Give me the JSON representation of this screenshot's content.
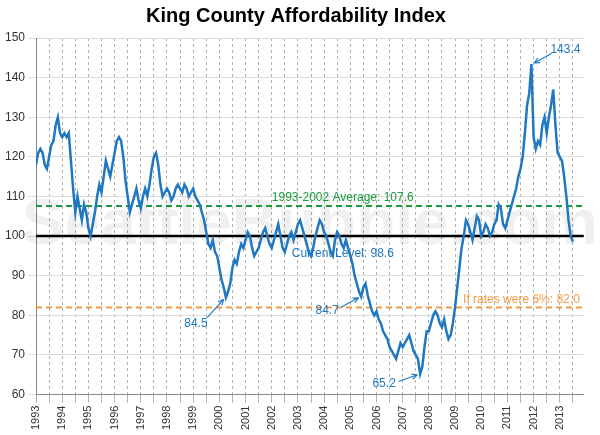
{
  "chart_data": {
    "type": "line",
    "title": "King County Affordability Index",
    "watermark": "SeattleBubble.com",
    "categories": [
      "1993",
      null,
      null,
      null,
      null,
      null,
      null,
      null,
      null,
      null,
      null,
      null,
      "1994",
      null,
      null,
      null,
      null,
      null,
      null,
      null,
      null,
      null,
      null,
      null,
      "1995",
      null,
      null,
      null,
      null,
      null,
      null,
      null,
      null,
      null,
      null,
      null,
      "1996",
      null,
      null,
      null,
      null,
      null,
      null,
      null,
      null,
      null,
      null,
      null,
      "1997",
      null,
      null,
      null,
      null,
      null,
      null,
      null,
      null,
      null,
      null,
      null,
      "1998",
      null,
      null,
      null,
      null,
      null,
      null,
      null,
      null,
      null,
      null,
      null,
      "1999",
      null,
      null,
      null,
      null,
      null,
      null,
      null,
      null,
      null,
      null,
      null,
      "2000",
      null,
      null,
      null,
      null,
      null,
      null,
      null,
      null,
      null,
      null,
      null,
      "2001",
      null,
      null,
      null,
      null,
      null,
      null,
      null,
      null,
      null,
      null,
      null,
      "2002",
      null,
      null,
      null,
      null,
      null,
      null,
      null,
      null,
      null,
      null,
      null,
      "2003",
      null,
      null,
      null,
      null,
      null,
      null,
      null,
      null,
      null,
      null,
      null,
      "2004",
      null,
      null,
      null,
      null,
      null,
      null,
      null,
      null,
      null,
      null,
      null,
      "2005",
      null,
      null,
      null,
      null,
      null,
      null,
      null,
      null,
      null,
      null,
      null,
      "2006",
      null,
      null,
      null,
      null,
      null,
      null,
      null,
      null,
      null,
      null,
      null,
      "2007",
      null,
      null,
      null,
      null,
      null,
      null,
      null,
      null,
      null,
      null,
      null,
      "2008",
      null,
      null,
      null,
      null,
      null,
      null,
      null,
      null,
      null,
      null,
      null,
      "2009",
      null,
      null,
      null,
      null,
      null,
      null,
      null,
      null,
      null,
      null,
      null,
      "2010",
      null,
      null,
      null,
      null,
      null,
      null,
      null,
      null,
      null,
      null,
      null,
      "2011",
      null,
      null,
      null,
      null,
      null,
      null,
      null,
      null,
      null,
      null,
      null,
      "2012",
      null,
      null,
      null,
      null,
      null,
      null,
      null,
      null,
      null,
      null,
      null,
      "2013",
      null,
      null,
      null,
      null,
      null,
      null,
      null,
      null,
      null,
      null,
      null
    ],
    "series": [
      {
        "name": "King County Affordability Index",
        "color": "#1f78c1",
        "values": [
          118,
          121,
          122,
          121,
          118,
          117,
          120,
          123,
          124,
          128,
          130,
          126,
          125,
          126,
          125,
          126,
          119,
          112,
          106,
          110,
          107,
          104,
          108,
          106,
          102,
          100,
          103,
          106,
          110,
          113,
          111,
          115,
          119,
          117,
          115,
          118,
          121,
          124,
          125,
          124,
          120,
          114,
          110,
          106,
          108,
          110,
          112,
          109,
          107,
          110,
          112,
          110,
          113,
          117,
          120,
          121,
          118,
          113,
          110,
          111,
          112,
          111,
          109,
          110,
          112,
          113,
          112,
          111,
          113,
          112,
          110,
          111,
          112,
          110,
          109,
          108,
          106,
          104,
          101,
          98,
          97,
          99,
          96,
          95,
          92,
          89,
          87,
          84.5,
          86,
          88,
          92,
          94,
          93,
          96,
          98,
          97,
          99,
          101,
          100,
          97,
          95,
          96,
          97,
          99,
          101,
          102,
          100,
          98,
          97,
          99,
          101,
          103,
          100,
          97,
          96,
          98,
          100,
          101,
          99,
          101,
          103,
          104,
          102,
          100,
          98,
          96,
          95,
          97,
          100,
          102,
          104,
          103,
          101,
          100,
          98,
          96,
          95,
          99,
          101,
          100,
          98,
          97,
          99,
          97,
          95,
          93,
          90,
          88,
          86,
          84.7,
          87,
          88,
          85,
          83,
          81,
          80,
          81,
          79,
          78,
          76,
          75,
          74,
          72,
          71,
          70,
          69,
          71,
          73,
          72,
          73,
          74,
          75,
          73,
          71,
          70,
          69,
          65.2,
          67,
          72,
          76,
          76,
          78,
          80,
          81,
          80,
          78,
          77,
          79,
          76,
          74,
          75,
          78,
          82,
          87,
          92,
          97,
          100,
          104,
          103,
          101,
          99,
          102,
          105,
          104,
          100,
          101,
          103,
          102,
          100,
          101,
          103,
          104,
          108,
          107,
          103,
          102,
          104,
          106,
          108,
          110,
          112,
          115,
          117,
          120,
          126,
          133,
          136,
          143.4,
          125,
          122,
          124,
          123,
          128,
          130,
          126,
          130,
          133,
          137,
          128,
          121,
          120,
          119,
          115,
          110,
          104,
          100,
          98.6,
          null,
          null,
          null,
          null,
          null
        ]
      }
    ],
    "ylim": [
      60,
      150
    ],
    "yticks": [
      60,
      70,
      80,
      90,
      100,
      110,
      120,
      130,
      140,
      150
    ],
    "grid": true,
    "reference_lines": [
      {
        "label": "1993-2002 Average: 107.6",
        "value": 107.6,
        "color": "#1a9a3c",
        "line_style": "dashed"
      },
      {
        "value": 100,
        "color": "#000000",
        "line_style": "solid"
      },
      {
        "label": "If rates were 6%: 82.0",
        "value": 82.0,
        "color": "#f39a45",
        "line_style": "dashed"
      }
    ],
    "current": {
      "label": "Current Level: 98.6",
      "value": 98.6
    },
    "annotations": [
      {
        "label": "84.5",
        "value": 84.5
      },
      {
        "label": "84.7",
        "value": 84.7
      },
      {
        "label": "65.2",
        "value": 65.2
      },
      {
        "label": "143.4",
        "value": 143.4
      }
    ]
  }
}
